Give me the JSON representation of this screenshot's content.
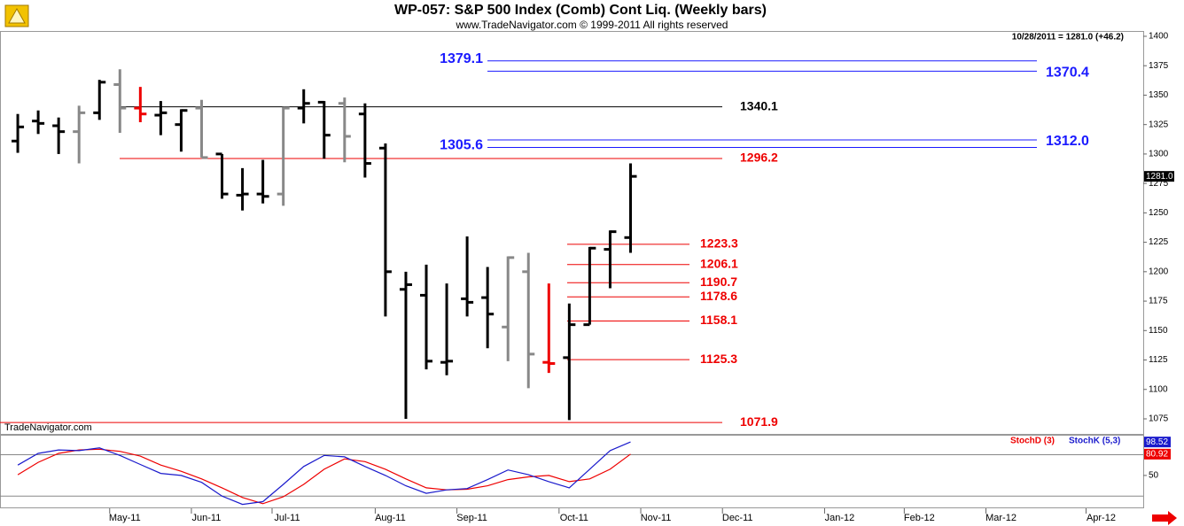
{
  "chart_data": {
    "type": "ohlc",
    "title": "WP-057:  S&P 500 Index (Comb) Cont Liq.  (Weekly bars)",
    "subtitle": "www.TradeNavigator.com © 1999-2011 All rights reserved",
    "info": "10/28/2011 = 1281.0 (+46.2)",
    "watermark": "TradeNavigator.com",
    "ylim": [
      1062.2,
      1404.5
    ],
    "yticks": [
      1075,
      1100,
      1125,
      1150,
      1175,
      1200,
      1225,
      1250,
      1275,
      1300,
      1325,
      1350,
      1375,
      1400
    ],
    "xlim": [
      -0.87,
      55.1
    ],
    "xticks": [
      {
        "value": 4.5,
        "label": "May-11"
      },
      {
        "value": 8.5,
        "label": "Jun-11"
      },
      {
        "value": 12.45,
        "label": "Jul-11"
      },
      {
        "value": 17.5,
        "label": "Aug-11"
      },
      {
        "value": 21.5,
        "label": "Sep-11"
      },
      {
        "value": 26.5,
        "label": "Oct-11"
      },
      {
        "value": 30.5,
        "label": "Nov-11"
      },
      {
        "value": 34.5,
        "label": "Dec-11"
      },
      {
        "value": 39.5,
        "label": "Jan-12"
      },
      {
        "value": 43.4,
        "label": "Feb-12"
      },
      {
        "value": 47.4,
        "label": "Mar-12"
      },
      {
        "value": 52.3,
        "label": "Apr-12"
      }
    ],
    "open": [
      1311,
      1328,
      1324,
      1319,
      1335,
      1359,
      1339,
      1333,
      1325,
      1339,
      1300,
      1265,
      1266,
      1266,
      1339,
      1344,
      1343,
      1334,
      1305,
      1185,
      1180,
      1123,
      1177,
      1178,
      1153,
      1200,
      1123,
      1127,
      1155,
      1219,
      1229
    ],
    "high": [
      1334,
      1337,
      1331,
      1341,
      1363,
      1372,
      1357,
      1345,
      1338,
      1346,
      1300,
      1288,
      1295,
      1340,
      1355,
      1345,
      1348,
      1343,
      1309,
      1200,
      1206,
      1190,
      1230,
      1204,
      1213,
      1216,
      1190,
      1173,
      1221,
      1235,
      1292
    ],
    "low": [
      1301,
      1317,
      1300,
      1292,
      1329,
      1318,
      1327,
      1316,
      1302,
      1297,
      1262,
      1252,
      1258,
      1256,
      1326,
      1296,
      1293,
      1280,
      1162,
      1075,
      1117,
      1112,
      1162,
      1135,
      1124,
      1101,
      1114,
      1074,
      1155,
      1186,
      1216
    ],
    "close": [
      1323,
      1326,
      1319,
      1335,
      1361,
      1339,
      1334,
      1335,
      1337,
      1297,
      1266,
      1266,
      1264,
      1339,
      1343,
      1316,
      1315,
      1292,
      1200,
      1189,
      1124,
      1124,
      1174,
      1164,
      1212,
      1130,
      1122,
      1155,
      1220,
      1234,
      1281
    ],
    "colors": [
      "#000",
      "#000",
      "#000",
      "#888",
      "#000",
      "#888",
      "#e00",
      "#000",
      "#000",
      "#888",
      "#000",
      "#000",
      "#000",
      "#888",
      "#000",
      "#000",
      "#888",
      "#000",
      "#000",
      "#000",
      "#000",
      "#000",
      "#000",
      "#000",
      "#888",
      "#888",
      "#e00",
      "#000",
      "#000",
      "#000",
      "#000"
    ],
    "last_price": {
      "value": 1281,
      "label": "1281.0"
    },
    "levels": [
      {
        "value": 1379.1,
        "label": "1379.1",
        "color": "#1a1aff"
      },
      {
        "value": 1370.4,
        "label": "1370.4",
        "color": "#1a1aff"
      },
      {
        "value": 1340.1,
        "label": "1340.1",
        "color": "#000"
      },
      {
        "value": 1312,
        "label": "1312.0",
        "color": "#1a1aff"
      },
      {
        "value": 1305.6,
        "label": "1305.6",
        "color": "#1a1aff"
      },
      {
        "value": 1296.2,
        "label": "1296.2",
        "color": "#e00"
      },
      {
        "value": 1223.3,
        "label": "1223.3",
        "color": "#e00"
      },
      {
        "value": 1206.1,
        "label": "1206.1",
        "color": "#e00"
      },
      {
        "value": 1190.7,
        "label": "1190.7",
        "color": "#e00"
      },
      {
        "value": 1178.6,
        "label": "1178.6",
        "color": "#e00"
      },
      {
        "value": 1158.1,
        "label": "1158.1",
        "color": "#e00"
      },
      {
        "value": 1125.3,
        "label": "1125.3",
        "color": "#e00"
      },
      {
        "value": 1071.9,
        "label": "1071.9",
        "color": "#e00"
      }
    ],
    "stoch": {
      "ylim": [
        4.9,
        107.7
      ],
      "yticks": [
        50
      ],
      "ref_levels": [
        20,
        80
      ],
      "series": [
        {
          "name": "StochD (3)",
          "color": "#e00",
          "values": [
            51,
            69,
            82,
            87,
            88,
            85,
            78,
            65,
            56,
            45,
            32,
            18,
            9,
            19,
            37,
            59,
            74,
            70,
            59,
            45,
            32,
            29,
            30,
            35,
            44,
            48,
            50,
            41,
            45,
            59,
            80.92
          ]
        },
        {
          "name": "StochK (5,3)",
          "color": "#1a1acc",
          "values": [
            65,
            82,
            87,
            86,
            90,
            79,
            66,
            53,
            50,
            40,
            20,
            8,
            12,
            37,
            63,
            79,
            77,
            63,
            50,
            35,
            24,
            29,
            31,
            44,
            58,
            51,
            41,
            32,
            59,
            86,
            98.52
          ]
        }
      ]
    }
  }
}
